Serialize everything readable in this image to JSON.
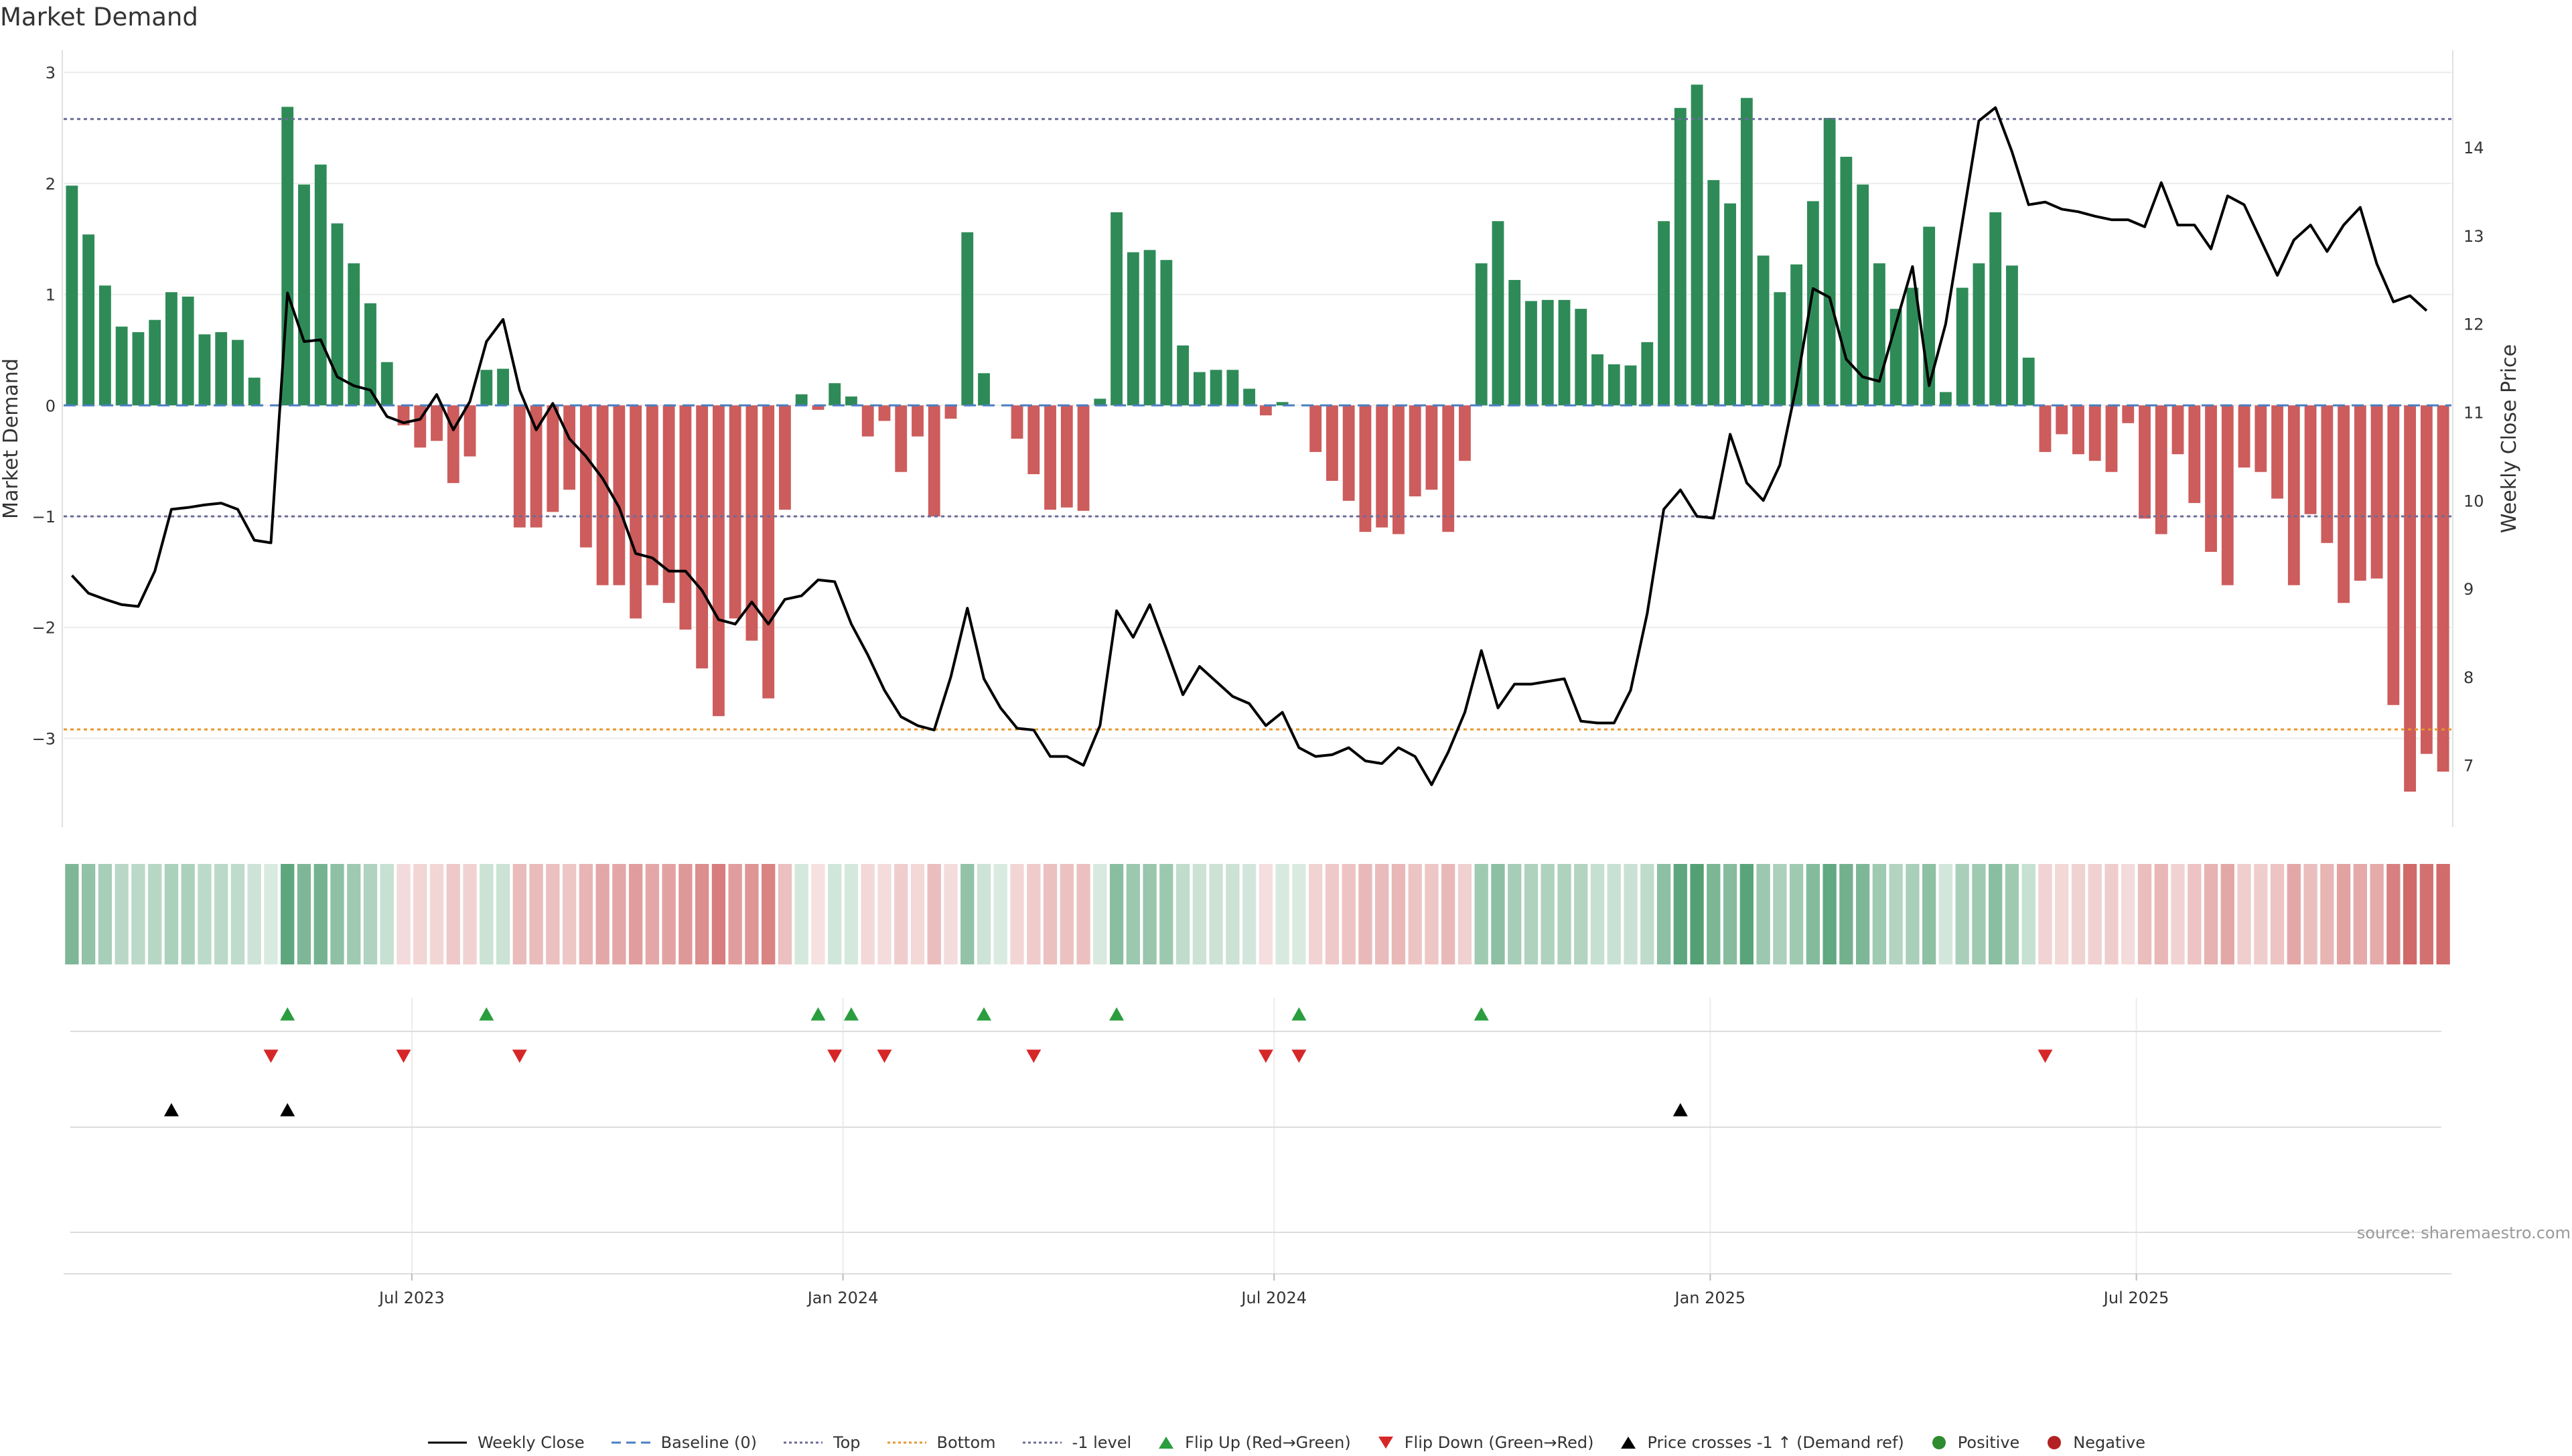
{
  "title": "Market Demand",
  "source_text": "source: sharemaestro.com",
  "colors": {
    "positive": "#2e8b57",
    "negative": "#cd5c5c",
    "price_line": "#000000",
    "baseline": "#4a7fc1",
    "top_line": "#6b6b9a",
    "bottom_line": "#e8962e",
    "minus1_line": "#6b6b9a",
    "flip_up": "#2a9d3f",
    "flip_down": "#d62728",
    "cross": "#000000",
    "pos_marker": "#2e8b2e",
    "neg_marker": "#b22222"
  },
  "chart_data": {
    "type": "bar",
    "title": "Market Demand",
    "ylabel": "Market Demand",
    "y2label": "Weekly Close Price",
    "ylim": [
      -3.8,
      3.2
    ],
    "y2lim": [
      6.3,
      15.1
    ],
    "y_ticks": [
      -3,
      -2,
      -1,
      0,
      1,
      2,
      3
    ],
    "y_tick_labels": [
      "−3",
      "−2",
      "−1",
      "0",
      "1",
      "2",
      "3"
    ],
    "y2_ticks": [
      7,
      8,
      9,
      10,
      11,
      12,
      13,
      14
    ],
    "y2_tick_labels": [
      "7",
      "8",
      "9",
      "10",
      "11",
      "12",
      "13",
      "14"
    ],
    "x_tick_labels": [
      "Jul 2023",
      "Jan 2024",
      "Jul 2024",
      "Jan 2025",
      "Jul 2025"
    ],
    "x_tick_weeks": [
      21,
      47,
      73,
      99.3,
      125
    ],
    "top_level": 2.58,
    "bottom_level": -2.92,
    "minus1_level": -1,
    "demand": [
      1.98,
      1.54,
      1.08,
      0.71,
      0.66,
      0.77,
      1.02,
      0.98,
      0.64,
      0.66,
      0.59,
      0.25,
      0,
      2.69,
      1.99,
      2.17,
      1.64,
      1.28,
      0.92,
      0.39,
      -0.18,
      -0.38,
      -0.32,
      -0.7,
      -0.46,
      0.32,
      0.33,
      -1.1,
      -1.1,
      -0.96,
      -0.76,
      -1.28,
      -1.62,
      -1.62,
      -1.92,
      -1.62,
      -1.78,
      -2.02,
      -2.37,
      -2.8,
      -1.92,
      -2.12,
      -2.64,
      -0.94,
      0.1,
      -0.04,
      0.2,
      0.08,
      -0.28,
      -0.14,
      -0.6,
      -0.28,
      -1.0,
      -0.12,
      1.56,
      0.29,
      0,
      -0.3,
      -0.62,
      -0.94,
      -0.92,
      -0.95,
      0.06,
      1.74,
      1.38,
      1.4,
      1.31,
      0.54,
      0.3,
      0.32,
      0.32,
      0.15,
      -0.09,
      0.03,
      0,
      -0.42,
      -0.68,
      -0.86,
      -1.14,
      -1.1,
      -1.16,
      -0.82,
      -0.76,
      -1.14,
      -0.5,
      1.28,
      1.66,
      1.13,
      0.94,
      0.95,
      0.95,
      0.87,
      0.46,
      0.37,
      0.36,
      0.57,
      1.66,
      2.68,
      2.89,
      2.03,
      1.82,
      2.77,
      1.35,
      1.02,
      1.27,
      1.84,
      2.59,
      2.24,
      1.99,
      1.28,
      0.87,
      1.06,
      1.61,
      0.12,
      1.06,
      1.28,
      1.74,
      1.26,
      0.43,
      -0.42,
      -0.26,
      -0.44,
      -0.5,
      -0.6,
      -0.16,
      -1.02,
      -1.16,
      -0.44,
      -0.88,
      -1.32,
      -1.62,
      -0.56,
      -0.6,
      -0.84,
      -1.62,
      -0.98,
      -1.24,
      -1.78,
      -1.58,
      -1.56,
      -2.7,
      -3.48,
      -3.14,
      -3.3
    ],
    "price": [
      9.15,
      8.95,
      8.88,
      8.82,
      8.8,
      9.2,
      9.9,
      9.92,
      9.95,
      9.97,
      9.9,
      9.55,
      9.52,
      12.35,
      11.8,
      11.82,
      11.4,
      11.3,
      11.25,
      10.95,
      10.88,
      10.92,
      11.2,
      10.8,
      11.12,
      11.8,
      12.05,
      11.25,
      10.8,
      11.1,
      10.7,
      10.5,
      10.25,
      9.92,
      9.4,
      9.35,
      9.2,
      9.2,
      8.98,
      8.65,
      8.6,
      8.85,
      8.6,
      8.88,
      8.92,
      9.1,
      9.08,
      8.6,
      8.25,
      7.85,
      7.55,
      7.45,
      7.4,
      8.0,
      8.78,
      7.98,
      7.65,
      7.42,
      7.4,
      7.1,
      7.1,
      7.0,
      7.45,
      8.75,
      8.45,
      8.82,
      8.32,
      7.8,
      8.12,
      7.95,
      7.78,
      7.7,
      7.45,
      7.6,
      7.2,
      7.1,
      7.12,
      7.2,
      7.05,
      7.02,
      7.2,
      7.1,
      6.78,
      7.15,
      7.6,
      8.3,
      7.65,
      7.92,
      7.92,
      7.95,
      7.98,
      7.5,
      7.48,
      7.48,
      7.85,
      8.72,
      9.9,
      10.12,
      9.82,
      9.8,
      10.75,
      10.2,
      10.0,
      10.4,
      11.3,
      12.4,
      12.3,
      11.6,
      11.4,
      11.35,
      12.0,
      12.65,
      11.3,
      12.0,
      13.15,
      14.3,
      14.45,
      13.95,
      13.35,
      13.38,
      13.3,
      13.27,
      13.22,
      13.18,
      13.18,
      13.1,
      13.6,
      13.12,
      13.12,
      12.85,
      13.45,
      13.35,
      12.95,
      12.55,
      12.95,
      13.12,
      12.82,
      13.12,
      13.32,
      12.68,
      12.25,
      12.32,
      12.15
    ],
    "flip_up_weeks": [
      13,
      25,
      45,
      47,
      55,
      63,
      74,
      85
    ],
    "flip_down_weeks": [
      12,
      20,
      27,
      46,
      49,
      58,
      72,
      74,
      119
    ],
    "price_cross_up_weeks": [
      6,
      13,
      97
    ],
    "series": [
      {
        "name": "Weekly Close"
      },
      {
        "name": "Baseline (0)"
      },
      {
        "name": "Top"
      },
      {
        "name": "Bottom"
      },
      {
        "name": "-1 level"
      },
      {
        "name": "Flip Up (Red→Green)"
      },
      {
        "name": "Flip Down (Green→Red)"
      },
      {
        "name": "Price crosses -1 ↑ (Demand ref)"
      },
      {
        "name": "Positive"
      },
      {
        "name": "Negative"
      }
    ]
  },
  "legend": [
    {
      "label": "Weekly Close",
      "symbol": "line",
      "color": "#000000"
    },
    {
      "label": "Baseline (0)",
      "symbol": "dash",
      "color": "#4a7fc1"
    },
    {
      "label": "Top",
      "symbol": "dot",
      "color": "#6b6b9a"
    },
    {
      "label": "Bottom",
      "symbol": "dot",
      "color": "#e8962e"
    },
    {
      "label": "-1 level",
      "symbol": "dot",
      "color": "#6b6b9a"
    },
    {
      "label": "Flip Up (Red→Green)",
      "symbol": "tri-up",
      "color": "#2a9d3f"
    },
    {
      "label": "Flip Down (Green→Red)",
      "symbol": "tri-down",
      "color": "#d62728"
    },
    {
      "label": "Price crosses -1 ↑ (Demand ref)",
      "symbol": "tri-up",
      "color": "#000000"
    },
    {
      "label": "Positive",
      "symbol": "circle",
      "color": "#2e8b2e"
    },
    {
      "label": "Negative",
      "symbol": "circle",
      "color": "#b22222"
    }
  ]
}
